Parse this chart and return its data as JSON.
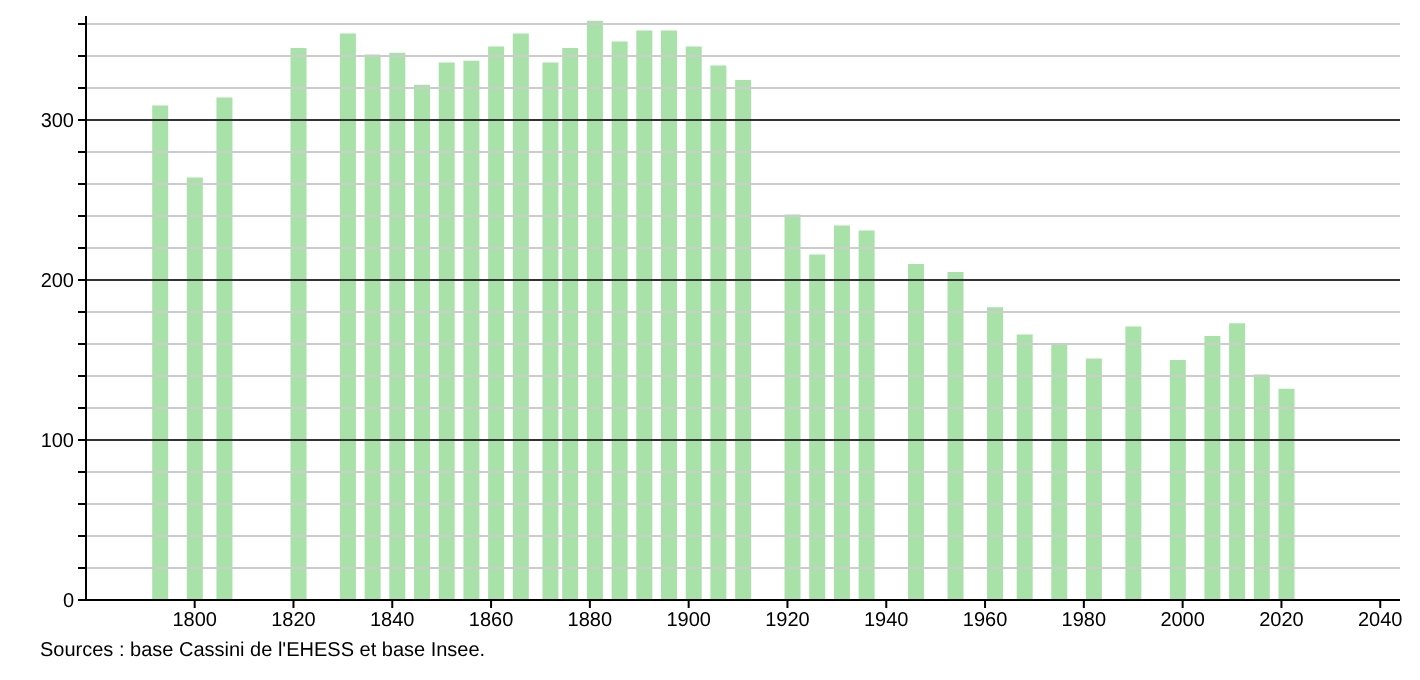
{
  "chart_data": {
    "type": "bar",
    "x": [
      1793,
      1800,
      1806,
      1821,
      1831,
      1836,
      1841,
      1846,
      1851,
      1856,
      1861,
      1866,
      1872,
      1876,
      1881,
      1886,
      1891,
      1896,
      1901,
      1906,
      1911,
      1921,
      1926,
      1931,
      1936,
      1946,
      1954,
      1962,
      1968,
      1975,
      1982,
      1990,
      1999,
      2006,
      2011,
      2016,
      2021
    ],
    "values": [
      309,
      264,
      314,
      345,
      354,
      341,
      342,
      322,
      336,
      337,
      346,
      354,
      336,
      345,
      362,
      349,
      356,
      356,
      346,
      334,
      325,
      241,
      216,
      234,
      231,
      210,
      205,
      183,
      166,
      160,
      151,
      171,
      150,
      165,
      173,
      141,
      132
    ],
    "color": "#a8e2a8",
    "xlim": [
      1778,
      2044
    ],
    "xticks": [
      1800,
      1820,
      1840,
      1860,
      1880,
      1900,
      1920,
      1940,
      1960,
      1980,
      2000,
      2020,
      2040
    ],
    "ylim": [
      0,
      365
    ],
    "yticks": [
      0,
      {
        "value": 20,
        "label": null
      },
      {
        "value": 40,
        "label": null
      },
      {
        "value": 60,
        "label": null
      },
      {
        "value": 80,
        "label": null
      },
      100,
      {
        "value": 120,
        "label": null
      },
      {
        "value": 140,
        "label": null
      },
      {
        "value": 160,
        "label": null
      },
      {
        "value": 180,
        "label": null
      },
      200,
      {
        "value": 220,
        "label": null
      },
      {
        "value": 240,
        "label": null
      },
      {
        "value": 260,
        "label": null
      },
      {
        "value": 280,
        "label": null
      },
      300,
      {
        "value": 320,
        "label": null
      },
      {
        "value": 340,
        "label": null
      },
      {
        "value": 360,
        "label": null
      }
    ],
    "grid": true,
    "annotations": [
      "Sources : base Cassini de l'EHESS et base Insee."
    ]
  }
}
